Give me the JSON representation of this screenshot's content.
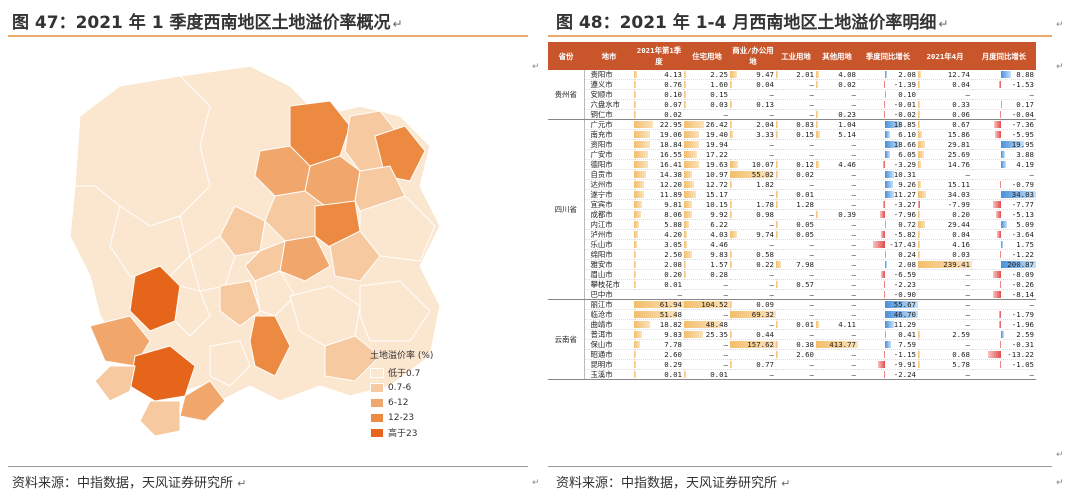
{
  "left_panel": {
    "title": "图 47：2021 年 1 季度西南地区土地溢价率概况",
    "source": "资料来源：中指数据，天风证券研究所",
    "legend": {
      "title": "土地溢价率 (%)",
      "items": [
        {
          "label": "低于0.7",
          "color": "#fbe6cf"
        },
        {
          "label": "0.7-6",
          "color": "#f6c9a0"
        },
        {
          "label": "6-12",
          "color": "#f1a66b"
        },
        {
          "label": "12-23",
          "color": "#ec8a42"
        },
        {
          "label": "高于23",
          "color": "#e5661b"
        }
      ]
    }
  },
  "right_panel": {
    "title": "图 48：2021 年 1-4 月西南地区土地溢价率明细",
    "source": "资料来源：中指数据，天风证券研究所",
    "headers": [
      "省份",
      "地市",
      "2021年第1季度",
      "住宅用地",
      "商业/办公用地",
      "工业用地",
      "其他用地",
      "季度同比增长",
      "2021年4月",
      "月度同比增长"
    ],
    "groups": [
      {
        "province": "贵州省",
        "rows": [
          [
            "贵阳市",
            "4.13",
            "2.25",
            "9.47",
            "2.01",
            "4.08",
            "2.08",
            "12.74",
            "8.88"
          ],
          [
            "遵义市",
            "0.76",
            "1.60",
            "0.04",
            "–",
            "0.02",
            "-1.39",
            "0.04",
            "-1.53"
          ],
          [
            "安顺市",
            "0.10",
            "0.15",
            "–",
            "–",
            "–",
            "0.10",
            "–",
            "–"
          ],
          [
            "六盘水市",
            "0.07",
            "0.03",
            "0.13",
            "–",
            "–",
            "-0.01",
            "0.33",
            "0.17"
          ],
          [
            "铜仁市",
            "0.02",
            "–",
            "–",
            "–",
            "0.23",
            "-0.02",
            "0.06",
            "-0.04"
          ]
        ]
      },
      {
        "province": "四川省",
        "rows": [
          [
            "广元市",
            "22.95",
            "26.42",
            "2.04",
            "0.83",
            "1.04",
            "18.85",
            "0.67",
            "-7.36"
          ],
          [
            "南充市",
            "19.06",
            "19.40",
            "3.33",
            "0.15",
            "5.14",
            "6.10",
            "15.86",
            "-5.95"
          ],
          [
            "资阳市",
            "18.84",
            "19.94",
            "–",
            "–",
            "–",
            "18.66",
            "29.81",
            "19.95"
          ],
          [
            "广安市",
            "16.55",
            "17.22",
            "–",
            "–",
            "–",
            "6.05",
            "25.69",
            "3.88"
          ],
          [
            "德阳市",
            "16.41",
            "19.63",
            "10.07",
            "0.12",
            "4.46",
            "-3.29",
            "14.76",
            "4.19"
          ],
          [
            "自贡市",
            "14.38",
            "10.97",
            "55.02",
            "0.02",
            "–",
            "10.31",
            "–",
            "–"
          ],
          [
            "达州市",
            "12.20",
            "12.72",
            "1.82",
            "–",
            "–",
            "9.26",
            "15.11",
            "-0.79"
          ],
          [
            "遂宁市",
            "11.89",
            "15.17",
            "–",
            "0.01",
            "–",
            "11.27",
            "34.03",
            "34.03"
          ],
          [
            "宜宾市",
            "9.81",
            "10.15",
            "1.78",
            "1.28",
            "–",
            "-3.27",
            "-7.99",
            "-7.77"
          ],
          [
            "成都市",
            "8.06",
            "9.92",
            "0.98",
            "–",
            "0.39",
            "-7.96",
            "0.20",
            "-5.13"
          ],
          [
            "内江市",
            "5.88",
            "6.22",
            "–",
            "0.05",
            "–",
            "0.72",
            "29.44",
            "5.09"
          ],
          [
            "泸州市",
            "4.20",
            "4.03",
            "9.74",
            "0.05",
            "–",
            "-5.82",
            "0.04",
            "-3.64"
          ],
          [
            "乐山市",
            "3.05",
            "4.46",
            "–",
            "–",
            "–",
            "-17.43",
            "4.16",
            "1.75"
          ],
          [
            "绵阳市",
            "2.50",
            "9.83",
            "0.58",
            "–",
            "–",
            "0.24",
            "0.03",
            "-1.22"
          ],
          [
            "雅安市",
            "2.08",
            "1.57",
            "0.22",
            "7.98",
            "–",
            "2.08",
            "239.41",
            "200.87"
          ],
          [
            "眉山市",
            "0.20",
            "0.28",
            "–",
            "–",
            "–",
            "-6.59",
            "–",
            "-8.09"
          ],
          [
            "攀枝花市",
            "0.01",
            "–",
            "–",
            "0.57",
            "–",
            "-2.23",
            "–",
            "-0.26"
          ],
          [
            "巴中市",
            "–",
            "–",
            "–",
            "–",
            "–",
            "-0.90",
            "–",
            "-8.14"
          ]
        ]
      },
      {
        "province": "云南省",
        "rows": [
          [
            "丽江市",
            "61.94",
            "104.52",
            "0.09",
            "–",
            "–",
            "55.67",
            "–",
            "–"
          ],
          [
            "临沧市",
            "51.48",
            "–",
            "69.32",
            "–",
            "–",
            "46.70",
            "–",
            "-1.79"
          ],
          [
            "曲靖市",
            "18.82",
            "48.48",
            "–",
            "0.01",
            "4.11",
            "11.29",
            "–",
            "-1.96"
          ],
          [
            "普洱市",
            "9.83",
            "25.35",
            "0.44",
            "–",
            "–",
            "0.41",
            "2.59",
            "2.59"
          ],
          [
            "保山市",
            "7.78",
            "–",
            "157.62",
            "0.38",
            "413.77",
            "7.59",
            "–",
            "-0.31"
          ],
          [
            "昭通市",
            "2.60",
            "–",
            "–",
            "2.60",
            "–",
            "-1.15",
            "0.68",
            "-13.22"
          ],
          [
            "昆明市",
            "0.29",
            "–",
            "0.77",
            "–",
            "–",
            "-9.91",
            "5.78",
            "-1.05"
          ],
          [
            "玉溪市",
            "0.01",
            "0.01",
            "–",
            "–",
            "–",
            "-2.24",
            "–",
            "–"
          ]
        ]
      }
    ]
  },
  "colors": {
    "title_rule": "#e8a96a",
    "table_header": "#c9552b",
    "bar_positive": "#f3be6a",
    "bar_negative": "#e34b4b",
    "bar_growth_positive": "#4a90d9"
  },
  "icons": {
    "return_mark": "↵"
  }
}
